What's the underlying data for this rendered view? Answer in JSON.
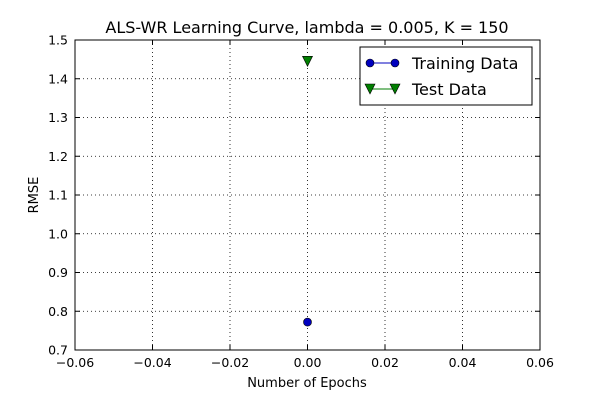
{
  "chart_data": {
    "type": "line",
    "title": "ALS-WR Learning Curve, lambda = 0.005, K = 150",
    "xlabel": "Number of Epochs",
    "ylabel": "RMSE",
    "xlim": [
      -0.06,
      0.06
    ],
    "ylim": [
      0.7,
      1.5
    ],
    "x_ticks": [
      -0.06,
      -0.04,
      -0.02,
      0.0,
      0.02,
      0.04,
      0.06
    ],
    "x_tick_labels": [
      "−0.06",
      "−0.04",
      "−0.02",
      "0.00",
      "0.02",
      "0.04",
      "0.06"
    ],
    "y_ticks": [
      0.7,
      0.8,
      0.9,
      1.0,
      1.1,
      1.2,
      1.3,
      1.4,
      1.5
    ],
    "y_tick_labels": [
      "0.7",
      "0.8",
      "0.9",
      "1.0",
      "1.1",
      "1.2",
      "1.3",
      "1.4",
      "1.5"
    ],
    "grid": true,
    "legend_position": "top-right",
    "series": [
      {
        "name": "Training Data",
        "marker": "circle",
        "color": "#0000bf",
        "x": [
          0.0
        ],
        "y": [
          0.772
        ]
      },
      {
        "name": "Test Data",
        "marker": "triangle-down",
        "color": "#007f00",
        "x": [
          0.0
        ],
        "y": [
          1.445
        ]
      }
    ]
  }
}
